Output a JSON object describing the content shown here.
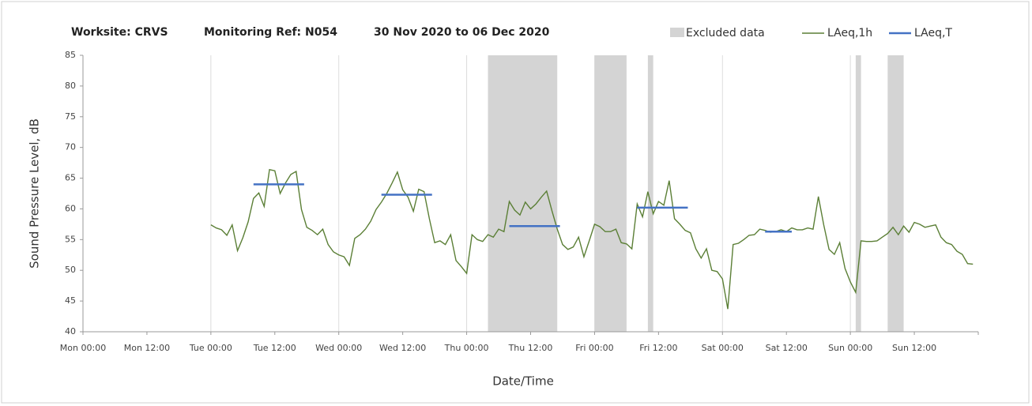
{
  "chart_data": {
    "type": "line",
    "title_parts": [
      "Worksite: CRVS",
      "Monitoring Ref: N054",
      "30 Nov 2020 to 06 Dec 2020"
    ],
    "ylabel": "Sound Pressure Level, dB",
    "xlabel": "Date/Time",
    "xlim": [
      0,
      168
    ],
    "xticks": [
      {
        "value": 0,
        "label": "Mon 00:00"
      },
      {
        "value": 12,
        "label": "Mon 12:00"
      },
      {
        "value": 24,
        "label": "Tue 00:00"
      },
      {
        "value": 36,
        "label": "Tue 12:00"
      },
      {
        "value": 48,
        "label": "Wed 00:00"
      },
      {
        "value": 60,
        "label": "Wed 12:00"
      },
      {
        "value": 72,
        "label": "Thu 00:00"
      },
      {
        "value": 84,
        "label": "Thu 12:00"
      },
      {
        "value": 96,
        "label": "Fri 00:00"
      },
      {
        "value": 108,
        "label": "Fri 12:00"
      },
      {
        "value": 120,
        "label": "Sat 00:00"
      },
      {
        "value": 132,
        "label": "Sat 12:00"
      },
      {
        "value": 144,
        "label": "Sun 00:00"
      },
      {
        "value": 156,
        "label": "Sun 12:00"
      }
    ],
    "ylim": [
      40,
      85
    ],
    "yticks": [
      40,
      45,
      50,
      55,
      60,
      65,
      70,
      75,
      80,
      85
    ],
    "grid": "x",
    "excluded": {
      "name": "Excluded data",
      "color": "#d4d4d4",
      "starts": [
        76,
        96,
        106,
        145,
        151
      ],
      "ends": [
        89,
        102,
        107,
        146,
        154
      ]
    },
    "series": [
      {
        "name": "LAeq,1h",
        "color": "#5b7f36",
        "x": [
          24,
          25,
          26,
          27,
          28,
          29,
          30,
          31,
          32,
          33,
          34,
          35,
          36,
          37,
          38,
          39,
          40,
          41,
          42,
          43,
          44,
          45,
          46,
          47,
          48,
          49,
          50,
          51,
          52,
          53,
          54,
          55,
          56,
          57,
          58,
          59,
          60,
          61,
          62,
          63,
          64,
          65,
          66,
          67,
          68,
          69,
          70,
          71,
          72,
          73,
          74,
          75,
          76,
          77,
          78,
          79,
          80,
          81,
          82,
          83,
          84,
          85,
          86,
          87,
          88,
          89,
          90,
          91,
          92,
          93,
          94,
          95,
          96,
          97,
          98,
          99,
          100,
          101,
          102,
          103,
          104,
          105,
          106,
          107,
          108,
          109,
          110,
          111,
          112,
          113,
          114,
          115,
          116,
          117,
          118,
          119,
          120,
          121,
          122,
          123,
          124,
          125,
          126,
          127,
          128,
          129,
          130,
          131,
          132,
          133,
          134,
          135,
          136,
          137,
          138,
          139,
          140,
          141,
          142,
          143,
          144,
          145,
          146,
          147,
          148,
          149,
          150,
          151,
          152,
          153,
          154,
          155,
          156,
          157,
          158,
          159,
          160,
          161,
          162,
          163,
          164,
          165,
          166,
          167
        ],
        "values": [
          57.4,
          56.9,
          56.6,
          55.7,
          57.4,
          53.2,
          55.3,
          57.9,
          61.7,
          62.6,
          60.4,
          66.4,
          66.2,
          62.5,
          64.2,
          65.6,
          66.1,
          59.9,
          57,
          56.5,
          55.8,
          56.7,
          54.2,
          53,
          52.5,
          52.2,
          50.8,
          55.2,
          55.8,
          56.7,
          58,
          59.9,
          61.1,
          62.5,
          64.2,
          66,
          63.1,
          61.9,
          59.6,
          63.2,
          62.8,
          58.4,
          54.5,
          54.8,
          54.2,
          55.8,
          51.6,
          50.6,
          49.5,
          55.8,
          55,
          54.7,
          55.8,
          55.4,
          56.7,
          56.3,
          61.2,
          59.8,
          59,
          61.1,
          60,
          60.8,
          61.9,
          62.9,
          59.7,
          56.7,
          54.2,
          53.4,
          53.8,
          55.4,
          52.2,
          54.8,
          57.5,
          57.1,
          56.3,
          56.3,
          56.7,
          54.5,
          54.3,
          53.5,
          60.8,
          58.7,
          62.8,
          59.2,
          61.2,
          60.6,
          64.6,
          58.4,
          57.5,
          56.5,
          56.1,
          53.5,
          52,
          53.5,
          50,
          49.8,
          48.6,
          43.7,
          54.2,
          54.4,
          55,
          55.7,
          55.8,
          56.7,
          56.5,
          56.2,
          56.3,
          56.6,
          56.3,
          56.9,
          56.6,
          56.6,
          56.9,
          56.7,
          62,
          57.4,
          53.4,
          52.6,
          54.5,
          50.3,
          48.1,
          46.4,
          54.8,
          54.7,
          54.7,
          54.8,
          55.4,
          56,
          57,
          55.8,
          57.2,
          56.2,
          57.8,
          57.5,
          57,
          57.2,
          57.4,
          55.4,
          54.5,
          54.2,
          53.1,
          52.6,
          51.1,
          51
        ]
      }
    ],
    "periods": {
      "name": "LAeq,T",
      "color": "#4472c4",
      "starts": [
        32,
        56,
        80,
        104,
        128
      ],
      "ends": [
        41.5,
        65.5,
        89.5,
        113.5,
        133
      ],
      "values": [
        64,
        62.3,
        57.2,
        60.2,
        56.3
      ]
    }
  }
}
